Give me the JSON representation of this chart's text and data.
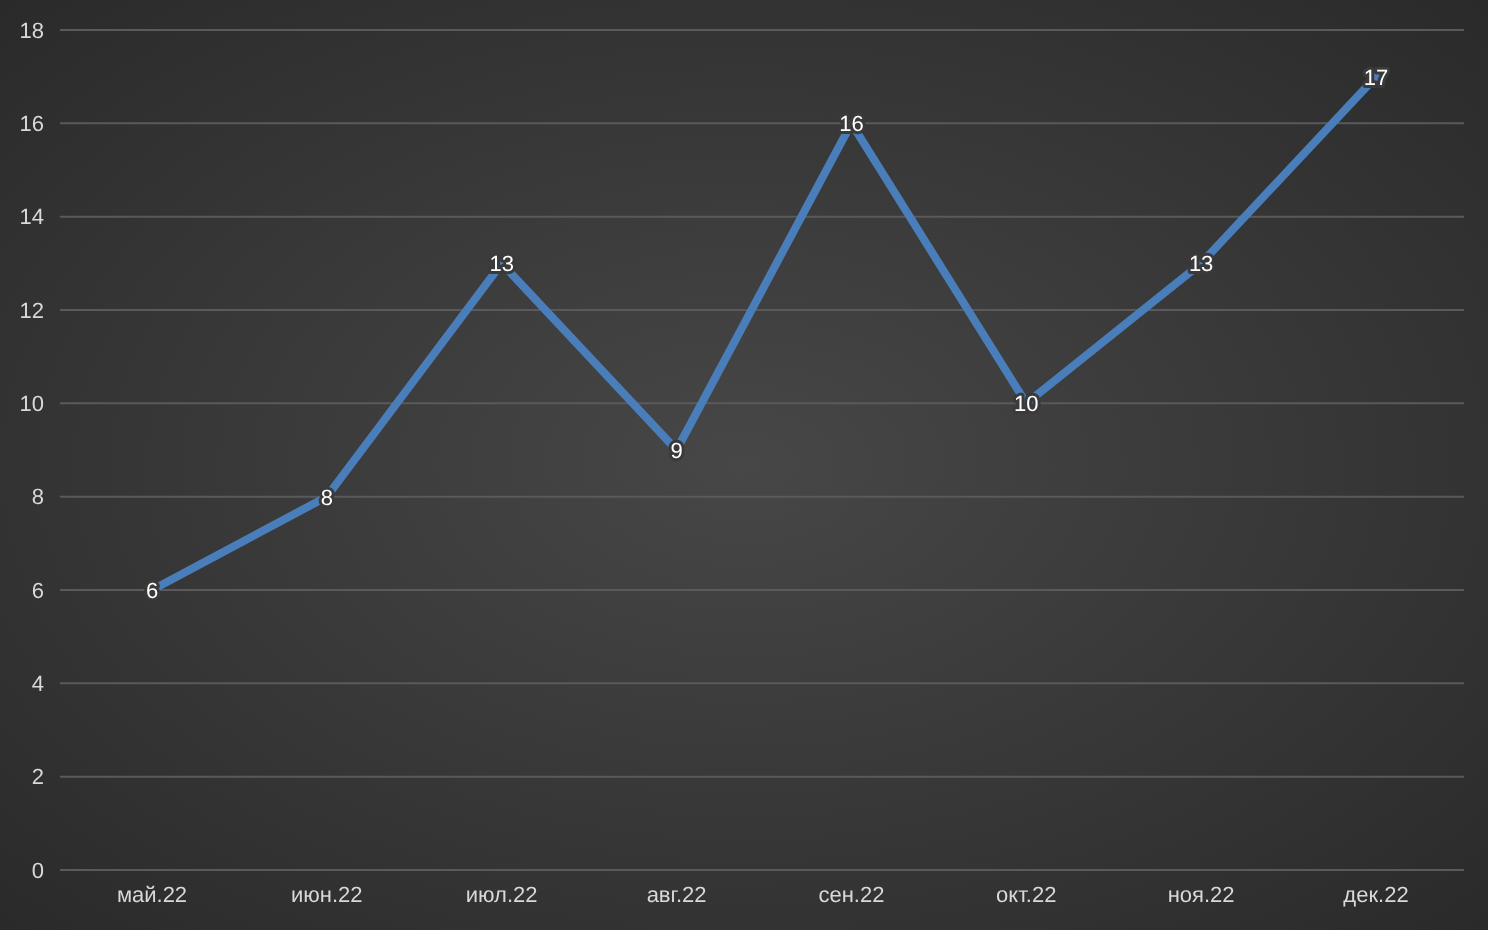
{
  "chart_data": {
    "type": "line",
    "categories": [
      "май.22",
      "июн.22",
      "июл.22",
      "авг.22",
      "сен.22",
      "окт.22",
      "ноя.22",
      "дек.22"
    ],
    "series": [
      {
        "color": "#4a7ebb",
        "values": [
          6,
          8,
          13,
          9,
          16,
          10,
          13,
          17
        ]
      }
    ],
    "ylim": [
      0,
      18
    ],
    "yticks": [
      0,
      2,
      4,
      6,
      8,
      10,
      12,
      14,
      16,
      18
    ],
    "grid": "y",
    "data_labels": true,
    "legend": false,
    "marker": "none",
    "line_style": "solid"
  }
}
